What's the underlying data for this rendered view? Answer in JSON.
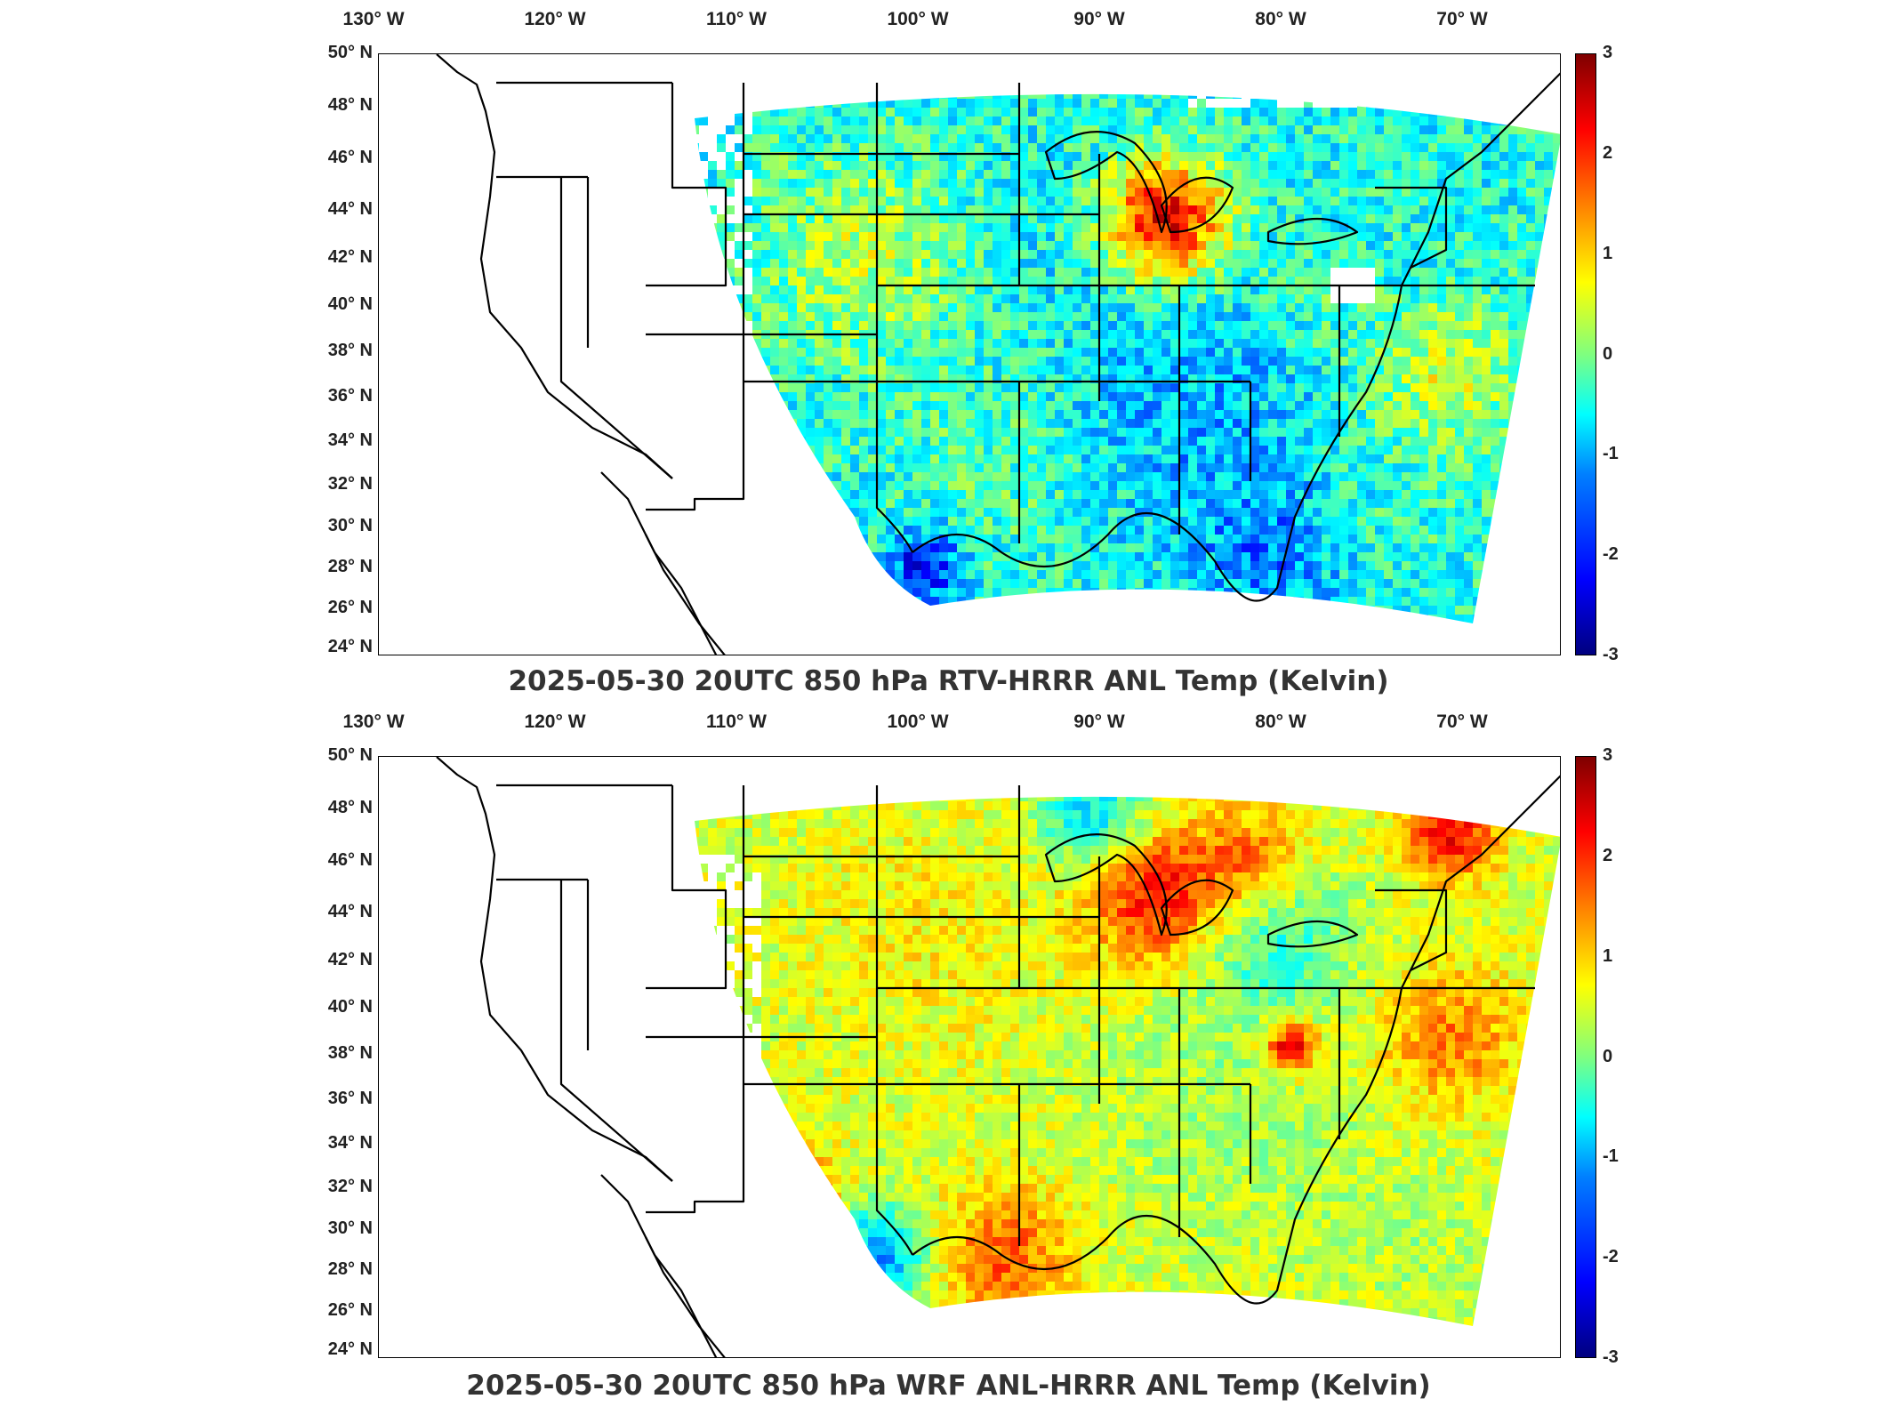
{
  "panels": [
    {
      "title": "2025-05-30 20UTC 850 hPa RTV-HRRR ANL Temp (Kelvin)",
      "variant": "rtv"
    },
    {
      "title": "2025-05-30 20UTC 850 hPa WRF ANL-HRRR ANL Temp (Kelvin)",
      "variant": "wrf"
    }
  ],
  "lon_ticks": [
    "130° W",
    "120° W",
    "110° W",
    "100° W",
    "90° W",
    "80° W",
    "70° W"
  ],
  "lat_ticks": [
    "50° N",
    "48° N",
    "46° N",
    "44° N",
    "42° N",
    "40° N",
    "38° N",
    "36° N",
    "34° N",
    "32° N",
    "30° N",
    "28° N",
    "26° N",
    "24° N"
  ],
  "colorbar": {
    "ticks": [
      "3",
      "2",
      "1",
      "0",
      "-1",
      "-2",
      "-3"
    ],
    "min": -3,
    "max": 3,
    "colormap": "jet"
  },
  "colors": {
    "frame": "#000000",
    "land_outline": "#000000"
  }
}
